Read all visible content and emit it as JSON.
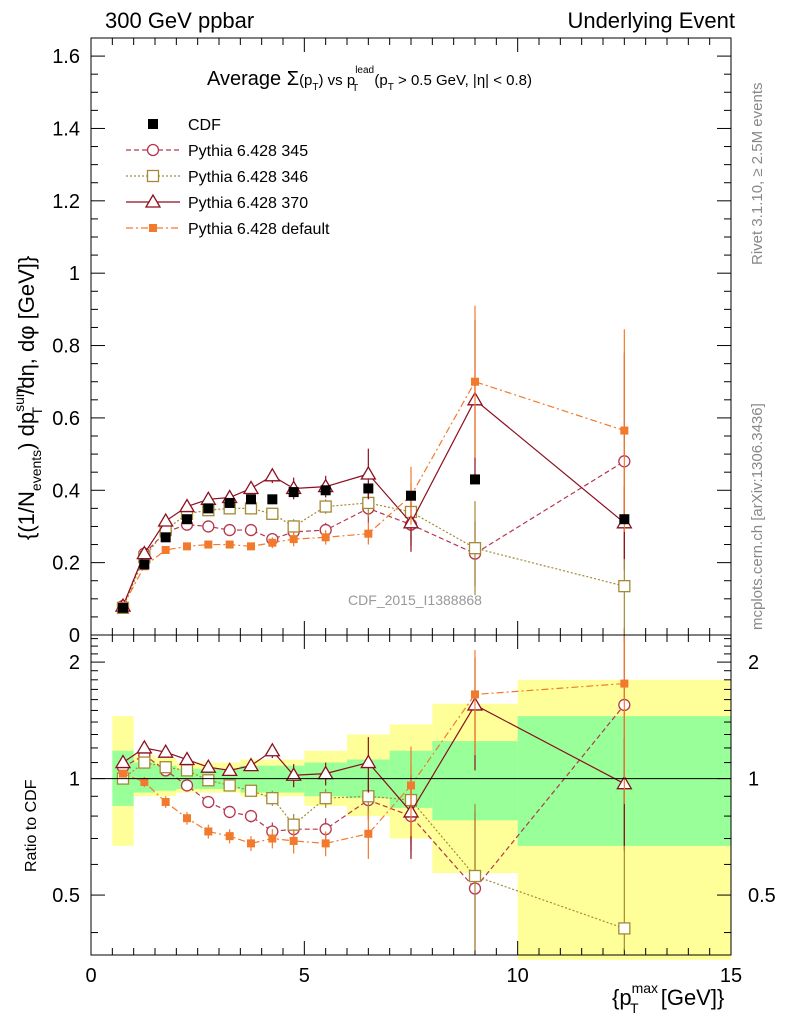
{
  "header": {
    "left_title": "300 GeV ppbar",
    "right_title": "Underlying Event",
    "plot_title_prefix": "Average ",
    "plot_title_sigma": "Σ",
    "plot_title_pt": "(p",
    "plot_title_pt_sub": "T",
    "plot_title_pt_close": ")",
    "plot_title_vs": " vs p",
    "plot_title_sup": "lead",
    "plot_title_sub": "T",
    "plot_title_cut": " (p",
    "plot_title_cut_sub": "T",
    "plot_title_cut_rest": " > 0.5 GeV, |η| < 0.8)"
  },
  "side_labels": {
    "rivet": "Rivet 3.1.10, ≥ 2.5M events",
    "mcplots": "mcplots.cern.ch [arXiv:1306.3436]",
    "analysis": "CDF_2015_I1388868"
  },
  "axes": {
    "ylabel_main": "{(1/N",
    "ylabel_main_sub": "events",
    "ylabel_main_mid": ") dp",
    "ylabel_main_sup": "sum",
    "ylabel_main_sub2": "T",
    "ylabel_main_rest": " /dη, dφ [GeV]}",
    "ylabel_ratio": "Ratio to CDF",
    "xlabel_open": "{p",
    "xlabel_sup": "max",
    "xlabel_sub": "T",
    "xlabel_rest": " [GeV]}"
  },
  "chart_data": {
    "type": "scatter",
    "title": "Average Σ(pT) vs pT^lead (pT > 0.5 GeV, |η| < 0.8)",
    "xlabel": "{pT^max [GeV]}",
    "ylabel": "{(1/N_events) dpT^sum/dη, dφ [GeV]}",
    "xlim": [
      0,
      15
    ],
    "ylim": [
      0,
      1.65
    ],
    "ratio_ylim": [
      0.35,
      2.35
    ],
    "x_ticks": [
      "0",
      "5",
      "10",
      "15"
    ],
    "y_ticks": [
      "0",
      "0.2",
      "0.4",
      "0.6",
      "0.8",
      "1",
      "1.2",
      "1.4",
      "1.6"
    ],
    "ratio_ticks": [
      "0.5",
      "1",
      "2"
    ],
    "legend_position": "top-left",
    "x": [
      0.75,
      1.25,
      1.75,
      2.25,
      2.75,
      3.25,
      3.75,
      4.25,
      4.75,
      5.5,
      6.5,
      7.5,
      9.0,
      12.5
    ],
    "cdf": {
      "name": "CDF",
      "values": [
        0.075,
        0.195,
        0.27,
        0.32,
        0.35,
        0.365,
        0.375,
        0.375,
        0.395,
        0.4,
        0.405,
        0.385,
        0.43,
        0.32
      ],
      "band_inner": [
        [
          0.5,
          1.0,
          0.85,
          1.18
        ],
        [
          1.0,
          1.5,
          0.92,
          1.1
        ],
        [
          1.5,
          2.0,
          0.93,
          1.08
        ],
        [
          2.0,
          3.5,
          0.94,
          1.06
        ],
        [
          3.5,
          5.0,
          0.92,
          1.08
        ],
        [
          5.0,
          6.0,
          0.9,
          1.1
        ],
        [
          6.0,
          7.0,
          0.89,
          1.12
        ],
        [
          7.0,
          8.0,
          0.84,
          1.18
        ],
        [
          8.0,
          10.0,
          0.78,
          1.25
        ],
        [
          10.0,
          15.0,
          0.67,
          1.45
        ]
      ],
      "band_outer": [
        [
          0.5,
          1.0,
          0.67,
          1.45
        ],
        [
          1.0,
          1.5,
          0.9,
          1.15
        ],
        [
          1.5,
          2.0,
          0.9,
          1.13
        ],
        [
          2.0,
          3.5,
          0.92,
          1.1
        ],
        [
          3.5,
          5.0,
          0.9,
          1.12
        ],
        [
          5.0,
          6.0,
          0.85,
          1.18
        ],
        [
          6.0,
          7.0,
          0.8,
          1.3
        ],
        [
          7.0,
          8.0,
          0.7,
          1.38
        ],
        [
          8.0,
          10.0,
          0.57,
          1.56
        ],
        [
          10.0,
          15.0,
          0.34,
          1.8
        ]
      ]
    },
    "series": [
      {
        "name": "Pythia 6.428 345",
        "color": "#b6364f",
        "marker": "circle-open",
        "dash": "5,3",
        "values": [
          0.08,
          0.225,
          0.285,
          0.305,
          0.3,
          0.29,
          0.29,
          0.265,
          0.285,
          0.29,
          0.35,
          0.305,
          0.225,
          0.48
        ],
        "errors": [
          0.005,
          0.01,
          0.01,
          0.01,
          0.01,
          0.01,
          0.01,
          0.015,
          0.02,
          0.02,
          0.04,
          0.06,
          0.09,
          0.3
        ],
        "ratio": [
          1.07,
          1.15,
          1.05,
          0.96,
          0.87,
          0.82,
          0.8,
          0.73,
          0.74,
          0.74,
          0.88,
          0.8,
          0.52,
          1.55
        ],
        "ratio_errors": [
          0.02,
          0.03,
          0.03,
          0.03,
          0.03,
          0.03,
          0.03,
          0.04,
          0.05,
          0.05,
          0.1,
          0.15,
          0.3,
          0.9
        ]
      },
      {
        "name": "Pythia 6.428 346",
        "color": "#a38a35",
        "marker": "square-open",
        "dash": "2,2",
        "values": [
          0.075,
          0.215,
          0.29,
          0.335,
          0.345,
          0.35,
          0.35,
          0.335,
          0.3,
          0.355,
          0.365,
          0.34,
          0.24,
          0.135
        ],
        "errors": [
          0.005,
          0.01,
          0.01,
          0.01,
          0.01,
          0.01,
          0.01,
          0.015,
          0.02,
          0.02,
          0.04,
          0.08,
          0.13,
          0.15
        ],
        "ratio": [
          1.0,
          1.1,
          1.07,
          1.05,
          0.99,
          0.96,
          0.93,
          0.89,
          0.76,
          0.89,
          0.9,
          0.88,
          0.56,
          0.41
        ],
        "ratio_errors": [
          0.02,
          0.03,
          0.03,
          0.03,
          0.03,
          0.03,
          0.03,
          0.04,
          0.05,
          0.05,
          0.1,
          0.2,
          0.3,
          0.5
        ]
      },
      {
        "name": "Pythia 6.428 370",
        "color": "#8c0f1f",
        "marker": "triangle-open",
        "dash": "",
        "values": [
          0.08,
          0.225,
          0.315,
          0.355,
          0.375,
          0.38,
          0.405,
          0.44,
          0.405,
          0.41,
          0.445,
          0.31,
          0.65,
          0.31
        ],
        "errors": [
          0.005,
          0.01,
          0.01,
          0.01,
          0.01,
          0.01,
          0.01,
          0.02,
          0.03,
          0.03,
          0.07,
          0.08,
          0.22,
          0.1
        ],
        "ratio": [
          1.1,
          1.2,
          1.17,
          1.12,
          1.07,
          1.05,
          1.08,
          1.18,
          1.02,
          1.03,
          1.1,
          0.82,
          1.55,
          0.97
        ],
        "ratio_errors": [
          0.02,
          0.03,
          0.03,
          0.03,
          0.03,
          0.03,
          0.03,
          0.05,
          0.07,
          0.07,
          0.18,
          0.2,
          0.5,
          0.3
        ]
      },
      {
        "name": "Pythia 6.428 default",
        "color": "#f27a2d",
        "marker": "square-filled",
        "dash": "7,3,2,3",
        "values": [
          0.08,
          0.19,
          0.235,
          0.245,
          0.25,
          0.25,
          0.245,
          0.255,
          0.265,
          0.27,
          0.28,
          0.385,
          0.7,
          0.565
        ],
        "errors": [
          0.005,
          0.01,
          0.01,
          0.01,
          0.01,
          0.01,
          0.01,
          0.015,
          0.02,
          0.02,
          0.03,
          0.08,
          0.21,
          0.28
        ],
        "ratio": [
          1.03,
          0.98,
          0.87,
          0.79,
          0.73,
          0.71,
          0.68,
          0.7,
          0.69,
          0.68,
          0.72,
          0.96,
          1.65,
          1.76
        ],
        "ratio_errors": [
          0.02,
          0.03,
          0.03,
          0.03,
          0.03,
          0.03,
          0.03,
          0.04,
          0.05,
          0.05,
          0.1,
          0.25,
          0.5,
          0.9
        ]
      }
    ]
  }
}
